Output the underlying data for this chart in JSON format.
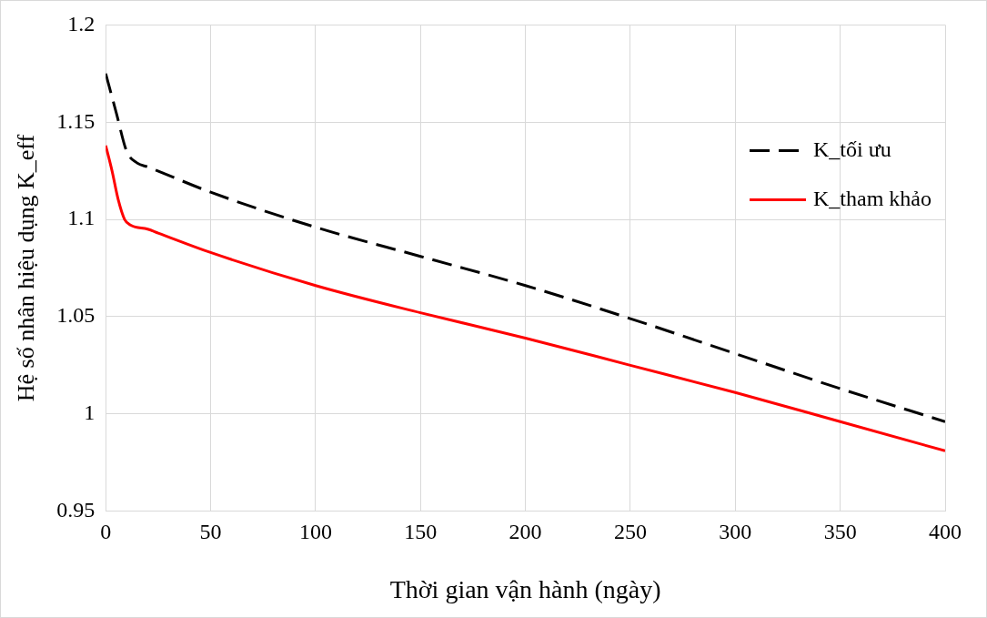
{
  "chart_data": {
    "type": "line",
    "xlabel": "Thời gian vận hành (ngày)",
    "ylabel": "Hệ số nhân hiệu dụng K_eff",
    "xlim": [
      0,
      400
    ],
    "xticks": [
      0,
      50,
      100,
      150,
      200,
      250,
      300,
      350,
      400
    ],
    "ylim": [
      0.95,
      1.2
    ],
    "yticks": [
      0.95,
      1,
      1.05,
      1.1,
      1.15,
      1.2
    ],
    "grid": true,
    "legend": "right",
    "marker": "none",
    "series": [
      {
        "name": "K_tối ưu",
        "color": "#000000",
        "line_style": "dashed",
        "x": [
          0,
          5,
          10,
          15,
          20,
          50,
          100,
          150,
          200,
          250,
          300,
          350,
          400
        ],
        "values": [
          1.175,
          1.155,
          1.135,
          1.129,
          1.127,
          1.114,
          1.096,
          1.081,
          1.066,
          1.049,
          1.031,
          1.013,
          0.996
        ]
      },
      {
        "name": "K_tham khảo",
        "color": "#ff0000",
        "line_style": "solid",
        "x": [
          0,
          3,
          6,
          9,
          12,
          20,
          25,
          50,
          100,
          150,
          200,
          250,
          300,
          350,
          400
        ],
        "values": [
          1.138,
          1.125,
          1.11,
          1.1,
          1.097,
          1.095,
          1.093,
          1.083,
          1.066,
          1.052,
          1.039,
          1.025,
          1.011,
          0.996,
          0.981
        ]
      }
    ]
  }
}
